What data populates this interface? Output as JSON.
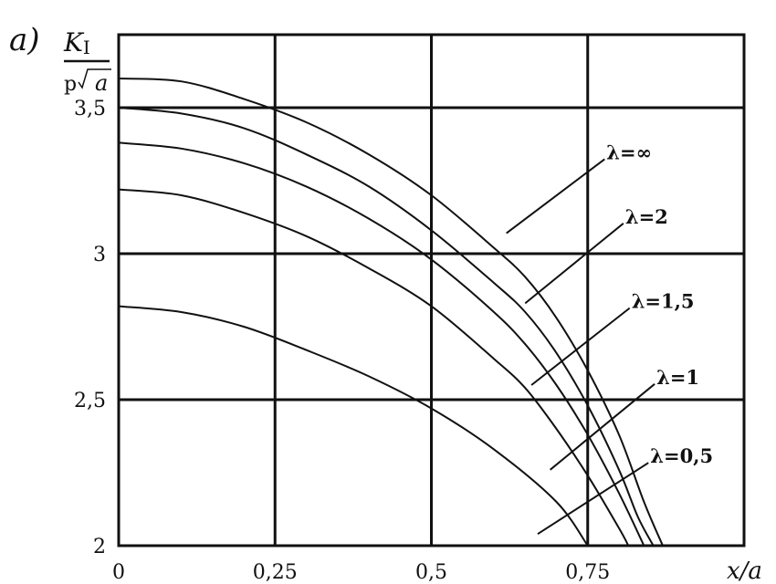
{
  "chart_data": {
    "type": "line",
    "panel_label": "a)",
    "ylabel": {
      "numerator": "K",
      "numerator_sub": "I",
      "denominator_p": "p",
      "denominator_a": "a"
    },
    "xlabel": "x/a",
    "xlim": [
      0,
      1.0
    ],
    "ylim": [
      2.0,
      3.75
    ],
    "grid": true,
    "x_ticks": [
      {
        "value": 0,
        "label": "0"
      },
      {
        "value": 0.25,
        "label": "0,25"
      },
      {
        "value": 0.5,
        "label": "0,5"
      },
      {
        "value": 0.75,
        "label": "0,75"
      }
    ],
    "y_ticks": [
      {
        "value": 2.0,
        "label": "2"
      },
      {
        "value": 2.5,
        "label": "2,5"
      },
      {
        "value": 3.0,
        "label": "3"
      },
      {
        "value": 3.5,
        "label": "3,5"
      }
    ],
    "series": [
      {
        "name": "λ=∞",
        "label_at": [
          0.78,
          3.33
        ],
        "leader_to": [
          0.62,
          3.07
        ],
        "points": [
          [
            0,
            3.6
          ],
          [
            0.1,
            3.59
          ],
          [
            0.2,
            3.53
          ],
          [
            0.3,
            3.45
          ],
          [
            0.4,
            3.34
          ],
          [
            0.5,
            3.2
          ],
          [
            0.6,
            3.02
          ],
          [
            0.65,
            2.92
          ],
          [
            0.7,
            2.78
          ],
          [
            0.75,
            2.6
          ],
          [
            0.8,
            2.38
          ],
          [
            0.84,
            2.15
          ],
          [
            0.87,
            2.0
          ]
        ]
      },
      {
        "name": "λ=2",
        "label_at": [
          0.81,
          3.11
        ],
        "leader_to": [
          0.65,
          2.83
        ],
        "points": [
          [
            0,
            3.5
          ],
          [
            0.1,
            3.48
          ],
          [
            0.2,
            3.43
          ],
          [
            0.3,
            3.34
          ],
          [
            0.4,
            3.23
          ],
          [
            0.5,
            3.08
          ],
          [
            0.6,
            2.9
          ],
          [
            0.65,
            2.8
          ],
          [
            0.7,
            2.66
          ],
          [
            0.75,
            2.48
          ],
          [
            0.8,
            2.26
          ],
          [
            0.83,
            2.1
          ],
          [
            0.855,
            2.0
          ]
        ]
      },
      {
        "name": "λ=1,5",
        "label_at": [
          0.82,
          2.82
        ],
        "leader_to": [
          0.66,
          2.55
        ],
        "points": [
          [
            0,
            3.38
          ],
          [
            0.1,
            3.36
          ],
          [
            0.2,
            3.31
          ],
          [
            0.3,
            3.23
          ],
          [
            0.4,
            3.12
          ],
          [
            0.5,
            2.98
          ],
          [
            0.6,
            2.8
          ],
          [
            0.65,
            2.69
          ],
          [
            0.7,
            2.55
          ],
          [
            0.75,
            2.38
          ],
          [
            0.8,
            2.18
          ],
          [
            0.84,
            2.0
          ]
        ]
      },
      {
        "name": "λ=1",
        "label_at": [
          0.86,
          2.56
        ],
        "leader_to": [
          0.69,
          2.26
        ],
        "points": [
          [
            0,
            3.22
          ],
          [
            0.1,
            3.2
          ],
          [
            0.2,
            3.14
          ],
          [
            0.3,
            3.06
          ],
          [
            0.4,
            2.95
          ],
          [
            0.5,
            2.82
          ],
          [
            0.6,
            2.64
          ],
          [
            0.65,
            2.54
          ],
          [
            0.7,
            2.4
          ],
          [
            0.75,
            2.24
          ],
          [
            0.8,
            2.06
          ],
          [
            0.815,
            2.0
          ]
        ]
      },
      {
        "name": "λ=0,5",
        "label_at": [
          0.85,
          2.29
        ],
        "leader_to": [
          0.67,
          2.04
        ],
        "points": [
          [
            0,
            2.82
          ],
          [
            0.1,
            2.8
          ],
          [
            0.2,
            2.75
          ],
          [
            0.3,
            2.67
          ],
          [
            0.4,
            2.58
          ],
          [
            0.5,
            2.47
          ],
          [
            0.6,
            2.33
          ],
          [
            0.7,
            2.15
          ],
          [
            0.75,
            2.0
          ]
        ]
      }
    ]
  }
}
